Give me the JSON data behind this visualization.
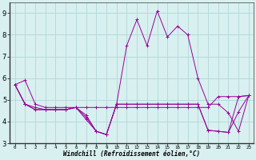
{
  "xlabel": "Windchill (Refroidissement éolien,°C)",
  "x": [
    0,
    1,
    2,
    3,
    4,
    5,
    6,
    7,
    8,
    9,
    10,
    11,
    12,
    13,
    14,
    15,
    16,
    17,
    18,
    19,
    20,
    21,
    22,
    23
  ],
  "line1": [
    5.7,
    5.9,
    4.8,
    4.65,
    4.65,
    4.65,
    4.65,
    4.65,
    4.65,
    4.65,
    4.65,
    4.65,
    4.65,
    4.65,
    4.65,
    4.65,
    4.65,
    4.65,
    4.65,
    4.65,
    5.15,
    5.15,
    5.15,
    5.2
  ],
  "line2": [
    5.7,
    4.8,
    4.65,
    4.55,
    4.55,
    4.55,
    4.65,
    4.3,
    3.55,
    3.4,
    4.8,
    7.5,
    8.7,
    7.5,
    9.1,
    7.9,
    8.4,
    8.0,
    6.0,
    4.8,
    4.8,
    4.4,
    3.55,
    5.2
  ],
  "line3": [
    5.7,
    4.8,
    4.55,
    4.55,
    4.55,
    4.55,
    4.65,
    4.2,
    3.55,
    3.4,
    4.8,
    4.8,
    4.8,
    4.8,
    4.8,
    4.8,
    4.8,
    4.8,
    4.8,
    3.6,
    3.55,
    3.5,
    5.15,
    5.2
  ],
  "line4": [
    5.7,
    4.8,
    4.55,
    4.55,
    4.55,
    4.55,
    4.65,
    4.1,
    3.55,
    3.4,
    4.8,
    4.8,
    4.8,
    4.8,
    4.8,
    4.8,
    4.8,
    4.8,
    4.8,
    3.6,
    3.55,
    3.5,
    4.45,
    5.2
  ],
  "color": "#990099",
  "bg_color": "#d9f0f0",
  "grid_color": "#b0d8d8",
  "ylim": [
    3.0,
    9.5
  ],
  "yticks": [
    3,
    4,
    5,
    6,
    7,
    8,
    9
  ],
  "xlim": [
    -0.5,
    23.5
  ]
}
